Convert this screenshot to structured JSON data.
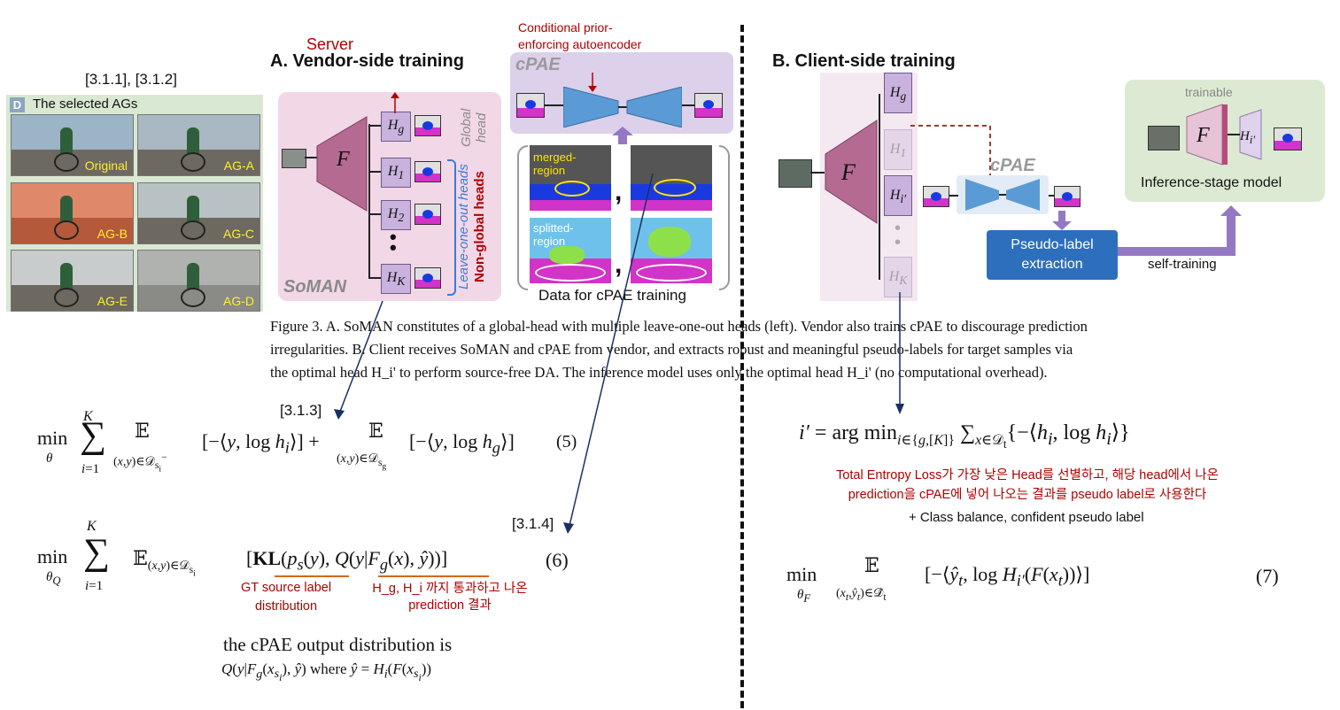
{
  "ag_panel": {
    "refs": "[3.1.1], [3.1.2]",
    "badge": "D",
    "title": "The selected AGs",
    "labels": [
      "Original",
      "AG-A",
      "AG-B",
      "AG-C",
      "AG-E",
      "AG-D"
    ]
  },
  "vendor": {
    "server_label": "Server",
    "title": "A. Vendor-side training",
    "F": "F",
    "heads": [
      "H",
      "H",
      "H",
      "H"
    ],
    "head_subs": [
      "g",
      "1",
      "2",
      "K"
    ],
    "global_head": "Global head",
    "loo_heads": "Leave-one-out heads",
    "non_global": "Non-global heads",
    "soman": "SoMAN"
  },
  "cpae": {
    "note": "Conditional prior-enforcing autoencoder",
    "label": "cPAE",
    "merged": "merged-region",
    "splitted": "splitted-region",
    "data_caption": "Data for cPAE training"
  },
  "client": {
    "title": "B. Client-side training",
    "F": "F",
    "cpae": "cPAE",
    "pseudo": "Pseudo-label extraction",
    "self_training": "self-training",
    "trainable": "trainable",
    "inference": "Inference-stage model"
  },
  "caption": {
    "line1": "Figure 3. A. SoMAN constitutes of a global-head with multiple leave-one-out heads (left). Vendor also trains cPAE to discourage prediction",
    "line2": "irregularities. B. Client receives SoMAN and cPAE from vendor, and extracts robust and meaningful pseudo-labels for target samples via",
    "line3": "the optimal head H_i' to perform source-free DA. The inference model uses only the optimal head H_i' (no computational overhead)."
  },
  "refs": {
    "r313": "[3.1.3]",
    "r314": "[3.1.4]"
  },
  "equations": {
    "eq5_num": "(5)",
    "eq6_num": "(6)",
    "eq7_num": "(7)"
  },
  "notes": {
    "gt": "GT source label distribution",
    "hg": "H_g, H_i 까지 통과하고 나온 prediction 결과",
    "total_entropy_1": "Total Entropy Loss가 가장 낮은 Head를 선별하고, 해당 head에서 나온",
    "total_entropy_2": "prediction을 cPAE에 넣어 나오는 결과를 pseudo label로 사용한다",
    "class_balance": "+ Class balance, confident pseudo label",
    "cpae_output": "the cPAE output distribution is"
  }
}
